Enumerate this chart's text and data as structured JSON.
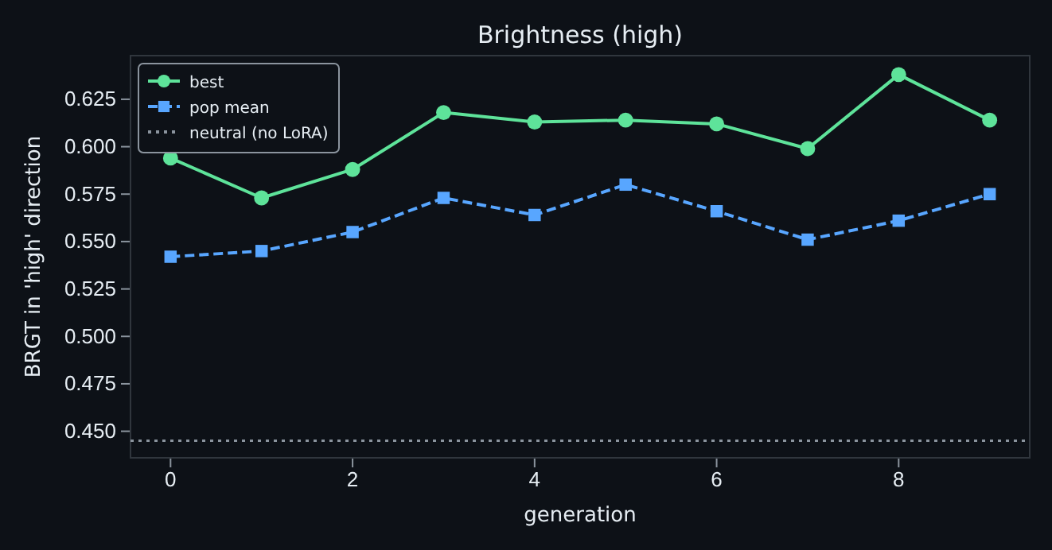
{
  "chart_data": {
    "type": "line",
    "title": "Brightness (high)",
    "xlabel": "generation",
    "ylabel": "BRGT in 'high' direction",
    "x": [
      0,
      1,
      2,
      3,
      4,
      5,
      6,
      7,
      8,
      9
    ],
    "series": [
      {
        "name": "best",
        "color": "#5ee39a",
        "values": [
          0.594,
          0.573,
          0.588,
          0.618,
          0.613,
          0.614,
          0.612,
          0.599,
          0.638,
          0.614
        ],
        "marker": "circle",
        "line_style": "solid"
      },
      {
        "name": "pop mean",
        "color": "#58a6ff",
        "values": [
          0.542,
          0.545,
          0.555,
          0.573,
          0.564,
          0.58,
          0.566,
          0.551,
          0.561,
          0.575
        ],
        "marker": "square",
        "line_style": "dashed"
      }
    ],
    "ref_lines": [
      {
        "axis": "y",
        "value": 0.445,
        "label": "neutral (no LoRA)",
        "color": "#8b949e",
        "line_style": "dotted"
      }
    ],
    "xlim": [
      -0.44,
      9.44
    ],
    "ylim": [
      0.436,
      0.648
    ],
    "xticks": [
      0,
      2,
      4,
      6,
      8
    ],
    "yticks": [
      {
        "value": 0.45,
        "label": "0.450"
      },
      {
        "value": 0.475,
        "label": "0.475"
      },
      {
        "value": 0.5,
        "label": "0.500"
      },
      {
        "value": 0.525,
        "label": "0.525"
      },
      {
        "value": 0.55,
        "label": "0.550"
      },
      {
        "value": 0.575,
        "label": "0.575"
      },
      {
        "value": 0.6,
        "label": "0.600"
      },
      {
        "value": 0.625,
        "label": "0.625"
      }
    ],
    "grid": false,
    "legend": "top left"
  }
}
